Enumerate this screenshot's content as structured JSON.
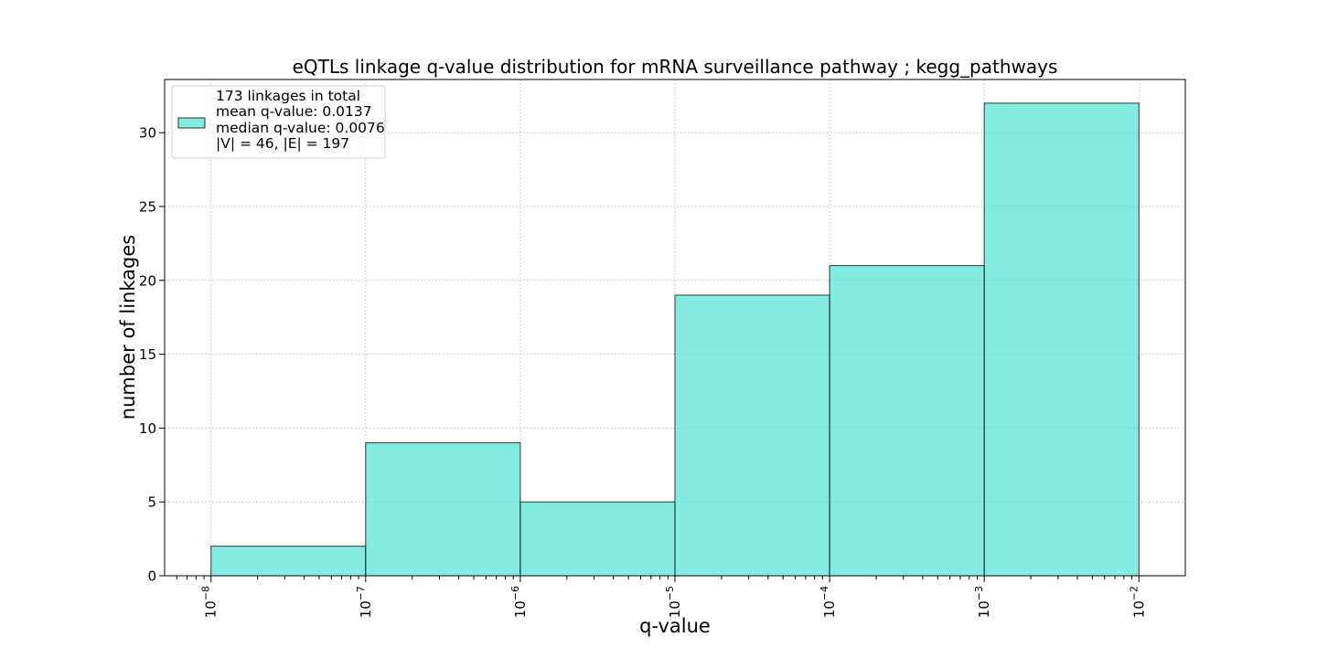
{
  "chart_data": {
    "type": "bar",
    "title": "eQTLs linkage q-value distribution for mRNA surveillance pathway ; kegg_pathways",
    "xlabel": "q-value",
    "ylabel": "number of linkages",
    "x_scale": "log",
    "x_tick_labels": [
      {
        "base": "10",
        "exp": "−8",
        "value": 1e-08
      },
      {
        "base": "10",
        "exp": "−7",
        "value": 1e-07
      },
      {
        "base": "10",
        "exp": "−6",
        "value": 1e-06
      },
      {
        "base": "10",
        "exp": "−5",
        "value": 1e-05
      },
      {
        "base": "10",
        "exp": "−4",
        "value": 0.0001
      },
      {
        "base": "10",
        "exp": "−3",
        "value": 0.001
      },
      {
        "base": "10",
        "exp": "−2",
        "value": 0.01
      }
    ],
    "y_ticks": [
      0,
      5,
      10,
      15,
      20,
      25,
      30
    ],
    "ylim": [
      0,
      33.6
    ],
    "xlim_log10": [
      -8.3,
      -1.7
    ],
    "bins": [
      {
        "from": 1e-08,
        "to": 1e-07,
        "count": 2
      },
      {
        "from": 1e-07,
        "to": 1e-06,
        "count": 9
      },
      {
        "from": 1e-06,
        "to": 1e-05,
        "count": 5
      },
      {
        "from": 1e-05,
        "to": 0.0001,
        "count": 19
      },
      {
        "from": 0.0001,
        "to": 0.001,
        "count": 21
      },
      {
        "from": 0.001,
        "to": 0.01,
        "count": 32
      }
    ],
    "bar_color": "#40e0d0",
    "bar_alpha": 0.65,
    "bar_edge_color": "#000000",
    "grid": true,
    "legend": {
      "placement": "top-left",
      "lines": [
        "173 linkages in total",
        "mean q-value: 0.0137",
        "median q-value: 0.0076",
        "|V| = 46, |E| = 197"
      ]
    }
  }
}
